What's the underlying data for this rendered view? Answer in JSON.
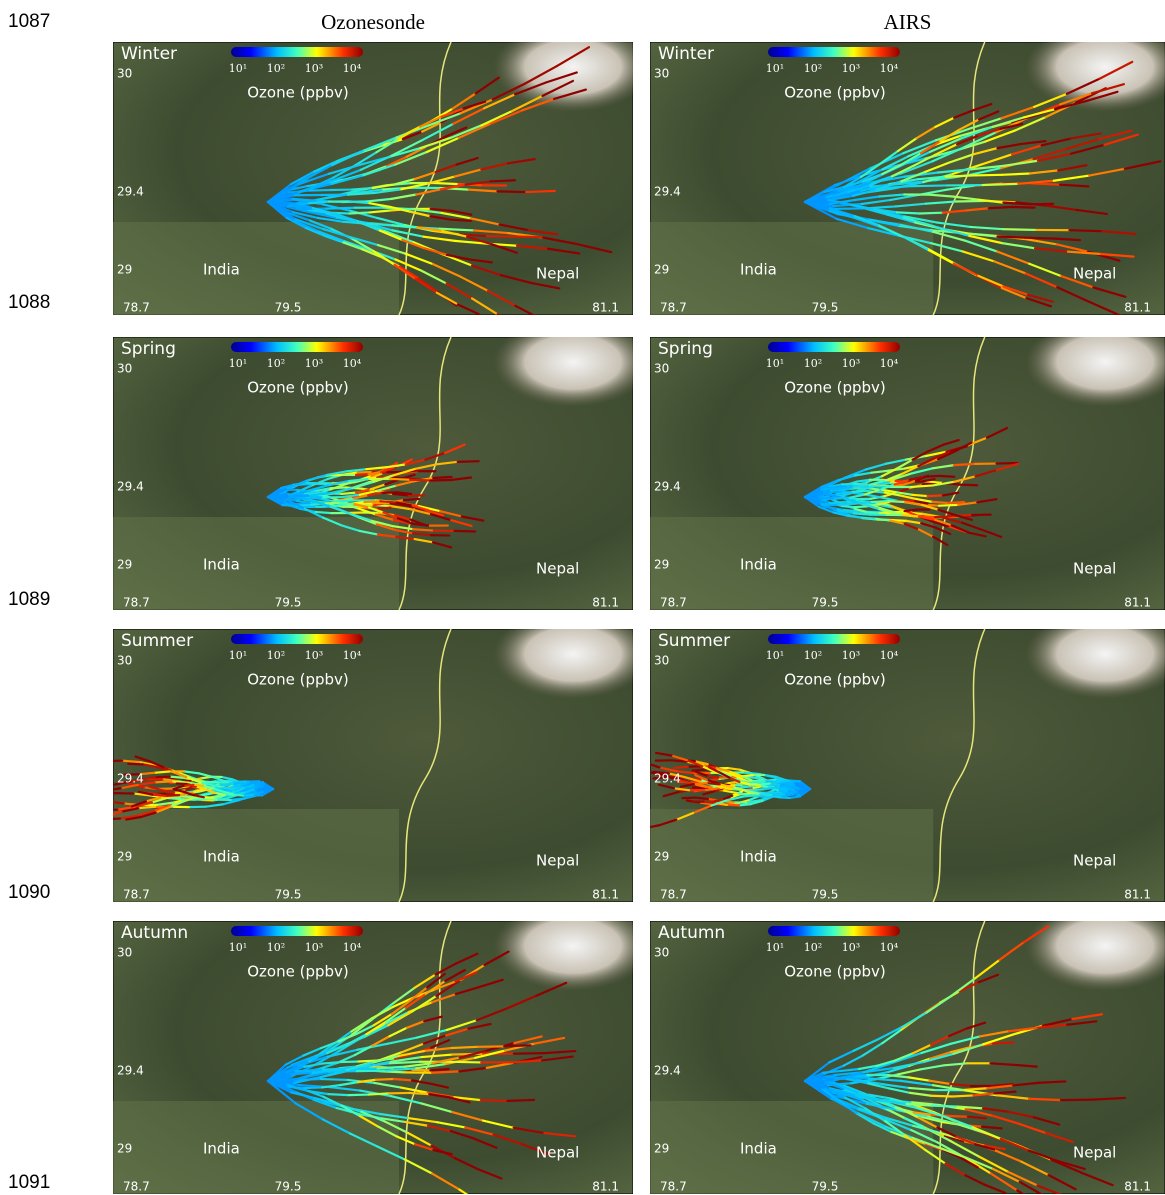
{
  "line_numbers": [
    "1087",
    "1088",
    "1089",
    "1090",
    "1091"
  ],
  "column_titles": [
    "Ozonesonde",
    "AIRS"
  ],
  "panels": [
    {
      "season": "Winter",
      "column": 0
    },
    {
      "season": "Winter",
      "column": 1
    },
    {
      "season": "Spring",
      "column": 0
    },
    {
      "season": "Spring",
      "column": 1
    },
    {
      "season": "Summer",
      "column": 0
    },
    {
      "season": "Summer",
      "column": 1
    },
    {
      "season": "Autumn",
      "column": 0
    },
    {
      "season": "Autumn",
      "column": 1
    }
  ],
  "map_labels": {
    "colorbar_ticks": [
      "10¹",
      "10²",
      "10³",
      "10⁴"
    ],
    "colorbar_label": "Ozone (ppbv)",
    "lat_labels": [
      "30",
      "29.4",
      "29"
    ],
    "lon_labels": [
      "78.7",
      "79.5",
      "81.1"
    ],
    "places": [
      "India",
      "Nepal"
    ]
  }
}
